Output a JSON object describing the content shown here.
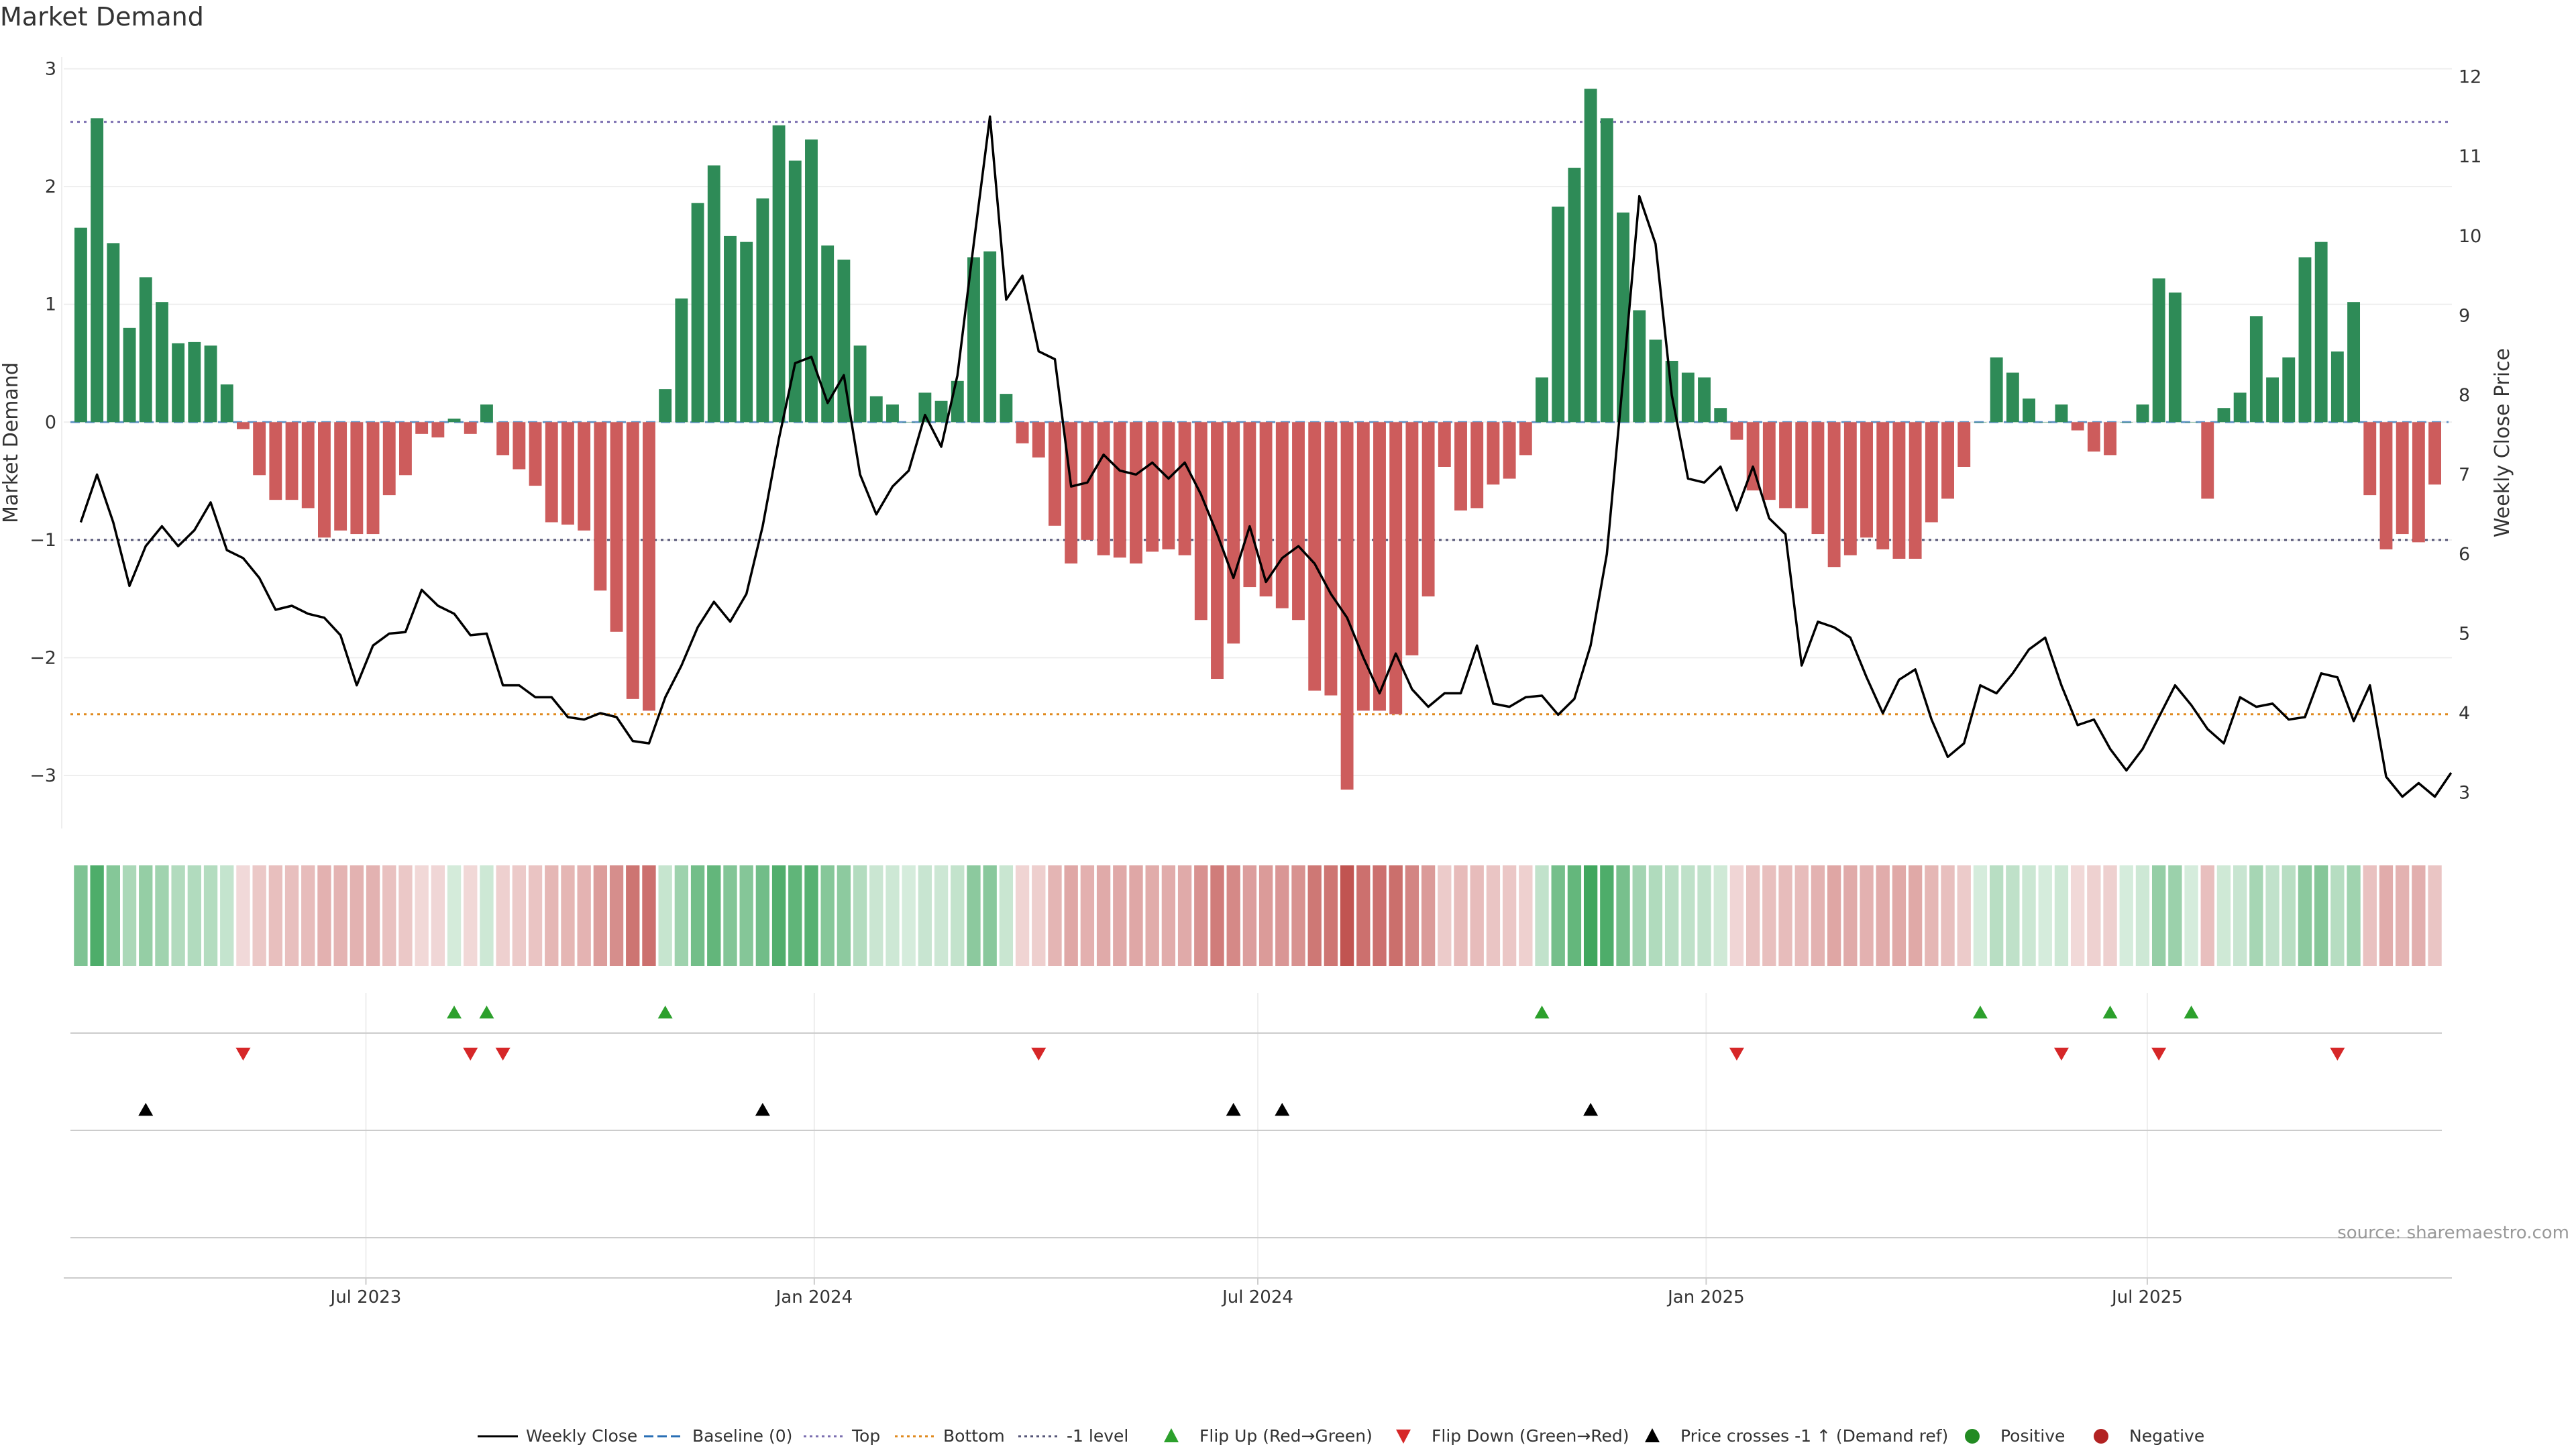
{
  "chart_data": {
    "type": "bar",
    "title": "Market Demand",
    "ylabel_left": "Market Demand",
    "ylabel_right": "Weekly Close Price",
    "source": "source: sharemaestro.com",
    "ylim_left": [
      -3.45,
      3.1
    ],
    "ylim_right": [
      2.55,
      12.25
    ],
    "yticks_left": [
      3,
      2,
      1,
      0,
      -1,
      -2,
      -3
    ],
    "ytick_labels_left": [
      "3",
      "2",
      "1",
      "0",
      "−1",
      "−2",
      "−3"
    ],
    "yticks_right": [
      12,
      11,
      10,
      9,
      8,
      7,
      6,
      5,
      4,
      3
    ],
    "ytick_labels_right": [
      "12",
      "11",
      "10",
      "9",
      "8",
      "7",
      "6",
      "5",
      "4",
      "3"
    ],
    "x_start": "2023-03-06",
    "x_end": "2025-10-27",
    "x_domain_start": "2023-02-27",
    "x_domain_end": "2025-11-03",
    "xticks": [
      {
        "date": "2023-07-01",
        "label": "Jul 2023"
      },
      {
        "date": "2024-01-01",
        "label": "Jan 2024"
      },
      {
        "date": "2024-07-01",
        "label": "Jul 2024"
      },
      {
        "date": "2025-01-01",
        "label": "Jan 2025"
      },
      {
        "date": "2025-07-01",
        "label": "Jul 2025"
      }
    ],
    "reference_lines": {
      "baseline": 0,
      "top": 2.55,
      "bottom": -2.48,
      "minus_one": -1
    },
    "series": [
      {
        "name": "Market Demand",
        "kind": "bar",
        "values": [
          1.65,
          2.58,
          1.52,
          0.8,
          1.23,
          1.02,
          0.67,
          0.68,
          0.65,
          0.32,
          -0.06,
          -0.45,
          -0.66,
          -0.66,
          -0.73,
          -0.98,
          -0.92,
          -0.95,
          -0.95,
          -0.62,
          -0.45,
          -0.1,
          -0.13,
          0.03,
          -0.1,
          0.15,
          -0.28,
          -0.4,
          -0.54,
          -0.85,
          -0.87,
          -0.92,
          -1.43,
          -1.78,
          -2.35,
          -2.45,
          0.28,
          1.05,
          1.86,
          2.18,
          1.58,
          1.53,
          1.9,
          2.52,
          2.22,
          2.4,
          1.5,
          1.38,
          0.65,
          0.22,
          0.15,
          0.0,
          0.25,
          0.18,
          0.35,
          1.4,
          1.45,
          0.24,
          -0.18,
          -0.3,
          -0.88,
          -1.2,
          -1.0,
          -1.13,
          -1.15,
          -1.2,
          -1.1,
          -1.08,
          -1.13,
          -1.68,
          -2.18,
          -1.88,
          -1.4,
          -1.48,
          -1.58,
          -1.68,
          -2.28,
          -2.32,
          -3.12,
          -2.45,
          -2.45,
          -2.48,
          -1.98,
          -1.48,
          -0.38,
          -0.75,
          -0.73,
          -0.53,
          -0.48,
          -0.28,
          0.38,
          1.83,
          2.16,
          2.83,
          2.58,
          1.78,
          0.95,
          0.7,
          0.52,
          0.42,
          0.38,
          0.12,
          -0.15,
          -0.58,
          -0.66,
          -0.73,
          -0.73,
          -0.95,
          -1.23,
          -1.13,
          -0.98,
          -1.08,
          -1.16,
          -1.16,
          -0.85,
          -0.65,
          -0.38,
          0.0,
          0.55,
          0.42,
          0.2,
          0.0,
          0.15,
          -0.07,
          -0.25,
          -0.28,
          0.0,
          0.15,
          1.22,
          1.1,
          0.0,
          -0.65,
          0.12,
          0.25,
          0.9,
          0.38,
          0.55,
          1.4,
          1.53,
          0.6,
          1.02,
          -0.62,
          -1.08,
          -0.95,
          -1.02,
          -0.53
        ]
      },
      {
        "name": "Weekly Close",
        "kind": "line",
        "values": [
          6.4,
          7.0,
          6.4,
          5.6,
          6.1,
          6.35,
          6.1,
          6.3,
          6.65,
          6.05,
          5.95,
          5.7,
          5.3,
          5.35,
          5.25,
          5.2,
          4.98,
          4.35,
          4.85,
          5.0,
          5.02,
          5.55,
          5.35,
          5.25,
          4.98,
          5.0,
          4.35,
          4.35,
          4.2,
          4.2,
          3.95,
          3.92,
          4.0,
          3.95,
          3.65,
          3.62,
          4.2,
          4.6,
          5.08,
          5.4,
          5.15,
          5.5,
          6.35,
          7.45,
          8.4,
          8.48,
          7.9,
          8.25,
          7.0,
          6.5,
          6.85,
          7.05,
          7.75,
          7.35,
          8.25,
          9.9,
          11.5,
          9.2,
          9.5,
          8.55,
          8.45,
          6.85,
          6.9,
          7.25,
          7.05,
          7.0,
          7.15,
          6.95,
          7.15,
          6.75,
          6.25,
          5.7,
          6.35,
          5.65,
          5.95,
          6.1,
          5.88,
          5.5,
          5.2,
          4.7,
          4.25,
          4.75,
          4.3,
          4.08,
          4.25,
          4.25,
          4.85,
          4.12,
          4.08,
          4.2,
          4.22,
          3.98,
          4.18,
          4.85,
          6.0,
          8.2,
          10.5,
          9.9,
          8.0,
          6.95,
          6.9,
          7.1,
          6.55,
          7.1,
          6.45,
          6.25,
          4.6,
          5.15,
          5.08,
          4.95,
          4.45,
          4.0,
          4.42,
          4.55,
          3.92,
          3.45,
          3.62,
          4.35,
          4.25,
          4.5,
          4.8,
          4.95,
          4.35,
          3.85,
          3.92,
          3.55,
          3.28,
          3.55,
          3.95,
          4.35,
          4.1,
          3.8,
          3.62,
          4.2,
          4.08,
          4.12,
          3.92,
          3.95,
          4.5,
          4.45,
          3.9,
          4.35,
          3.2,
          2.95,
          3.12,
          2.95,
          3.25
        ]
      }
    ],
    "strip_intensity_note": "heat strip colour follows sign and magnitude of Market Demand per week",
    "events": {
      "flip_up_indices": [
        23,
        25,
        36,
        90,
        117,
        125,
        130
      ],
      "flip_down_indices": [
        10,
        24,
        26,
        59,
        102,
        122,
        128,
        139
      ],
      "price_cross_indices": [
        4,
        42,
        71,
        74,
        93
      ]
    },
    "legend": {
      "placement": "bottom-center",
      "items": [
        {
          "label": "Weekly Close",
          "marker": "line-solid",
          "color": "#000000"
        },
        {
          "label": "Baseline (0)",
          "marker": "line-dashed",
          "color": "#2a6fb5"
        },
        {
          "label": "Top",
          "marker": "line-dotted",
          "color": "#7c6fb0"
        },
        {
          "label": "Bottom",
          "marker": "line-dotted",
          "color": "#e08a1e"
        },
        {
          "label": "-1 level",
          "marker": "line-dotted",
          "color": "#555577"
        },
        {
          "label": "Flip Up (Red→Green)",
          "marker": "triangle-up",
          "color": "#2ca02c"
        },
        {
          "label": "Flip Down (Green→Red)",
          "marker": "triangle-down",
          "color": "#d62728"
        },
        {
          "label": "Price crosses -1 ↑ (Demand ref)",
          "marker": "triangle-up",
          "color": "#000000"
        },
        {
          "label": "Positive",
          "marker": "circle",
          "color": "#228b22"
        },
        {
          "label": "Negative",
          "marker": "circle",
          "color": "#b22222"
        }
      ]
    }
  },
  "colors": {
    "positive_bar": "#2e8b57",
    "negative_bar": "#cd5c5c",
    "flip_up": "#2ca02c",
    "flip_down": "#d62728",
    "price_cross": "#000000",
    "top_line": "#7c6fb0",
    "bottom_line": "#e08a1e",
    "minus_one_line": "#555577",
    "baseline_line": "#2a6fb5",
    "price_line": "#000000",
    "grid": "#eeeeee",
    "axis": "#cccccc",
    "text": "#333333",
    "source_text": "#999999"
  }
}
